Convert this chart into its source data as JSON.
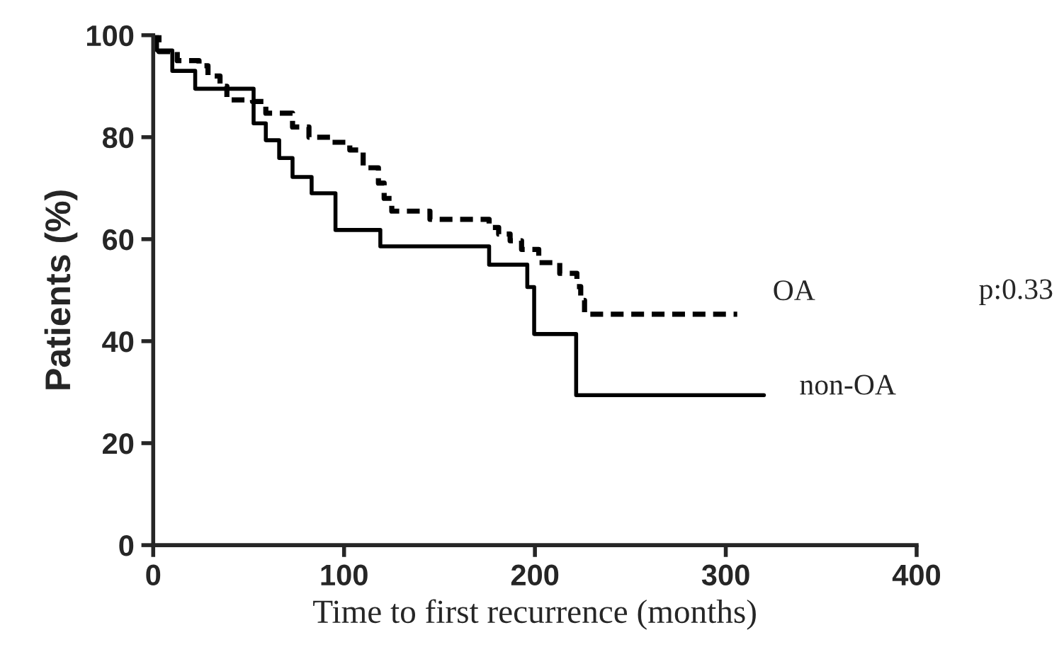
{
  "chart_data": {
    "type": "step",
    "xlabel": "Time to first recurrence (months)",
    "ylabel": "Patients (%)",
    "xlim": [
      0,
      400
    ],
    "ylim": [
      0,
      100
    ],
    "xticks": [
      0,
      100,
      200,
      300,
      400
    ],
    "yticks": [
      0,
      20,
      40,
      60,
      80,
      100
    ],
    "grid": false,
    "legend": false,
    "marker": "none",
    "series": [
      {
        "name": "OA",
        "color": "#000000",
        "line_style": "dashed",
        "x": [
          0,
          3,
          12.6,
          24,
          28.7,
          35,
          38.6,
          52,
          59,
          73,
          81.6,
          93,
          103,
          110,
          118,
          121,
          125,
          145,
          176,
          181,
          187,
          193,
          202,
          213,
          222,
          224,
          226,
          306
        ],
        "values": [
          100,
          96.8,
          95,
          94,
          92,
          90,
          87.3,
          87,
          84.7,
          82,
          80,
          79,
          77.5,
          74,
          71,
          68,
          65.5,
          63.9,
          62.3,
          61,
          59.7,
          58,
          55.4,
          53.3,
          50.7,
          48,
          45.3,
          45.3
        ]
      },
      {
        "name": "non-OA",
        "color": "#000000",
        "line_style": "solid",
        "x": [
          0,
          2,
          10,
          22,
          52.6,
          59,
          66,
          73,
          83,
          95.5,
          119,
          176,
          196,
          199.6,
          221.6,
          320
        ],
        "values": [
          100,
          97,
          93,
          89.5,
          82.7,
          79.4,
          75.9,
          72.2,
          69,
          61.8,
          58.6,
          55,
          50.6,
          41.4,
          29.4,
          29.4
        ]
      }
    ],
    "annotations": [
      "p:0.33"
    ]
  }
}
